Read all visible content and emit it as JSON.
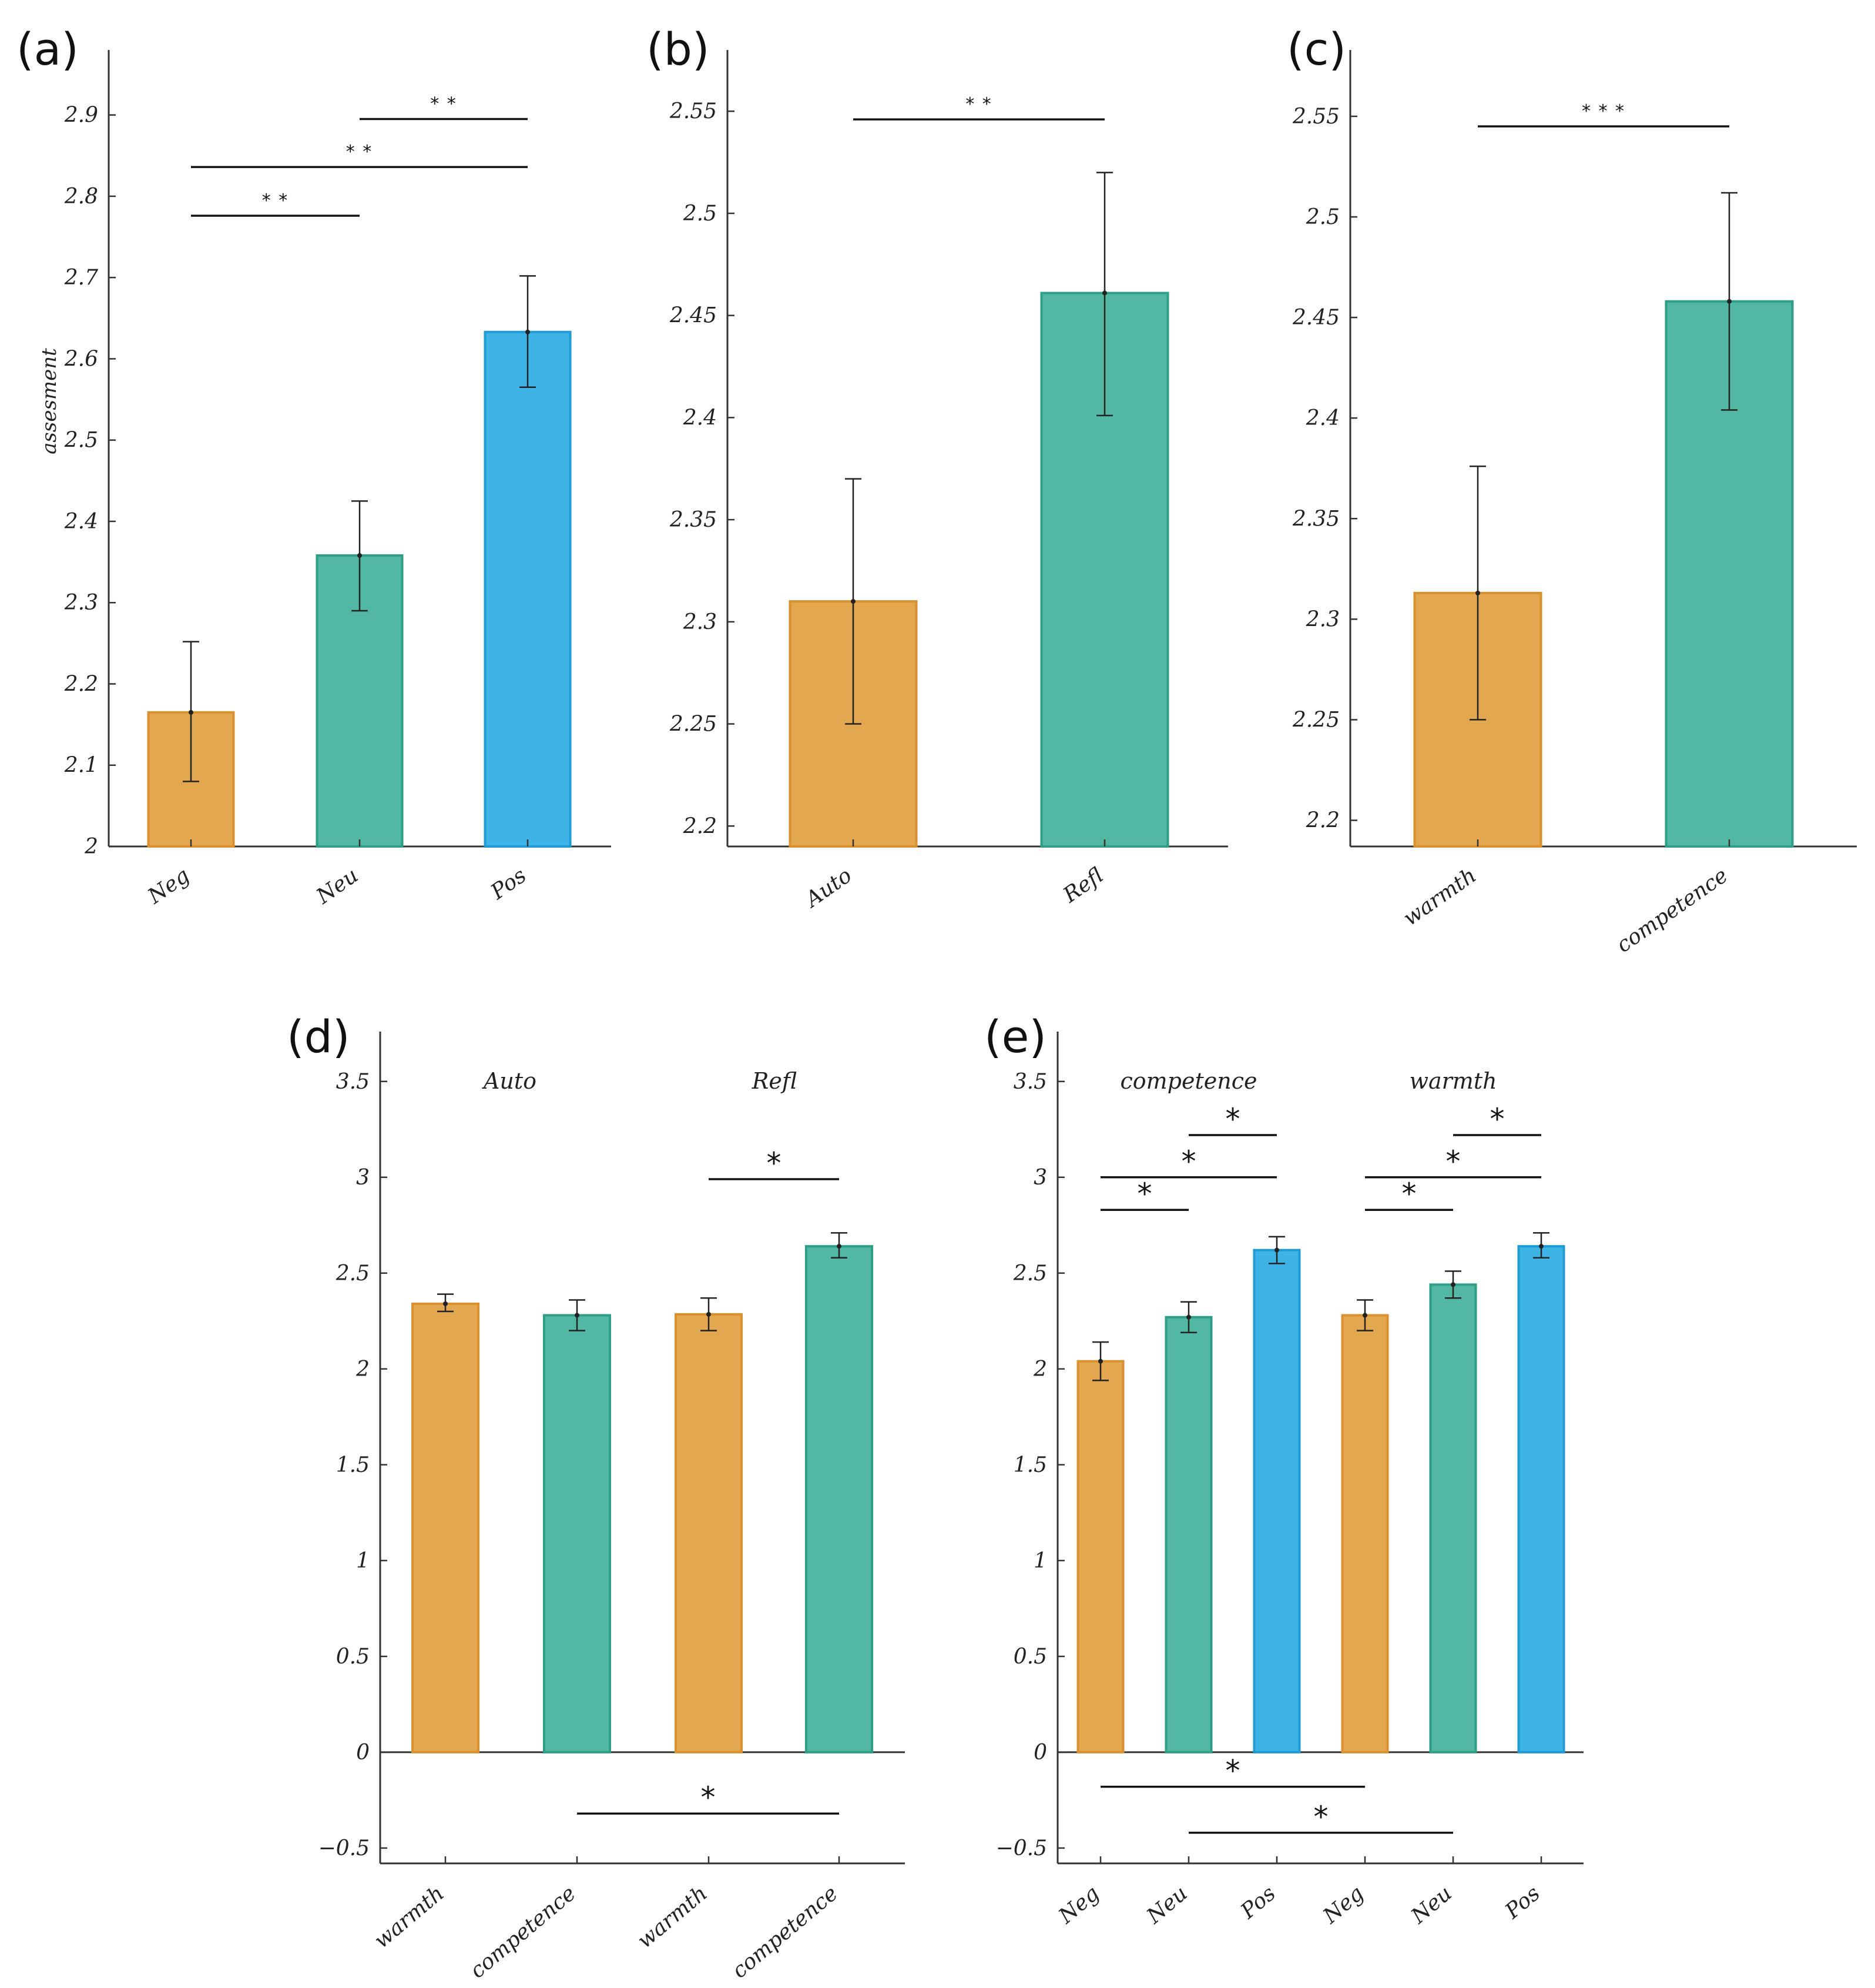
{
  "colors": {
    "orange": "#E3A84F",
    "orange_edge": "#D9902F",
    "green": "#52B7A3",
    "green_edge": "#2E9E86",
    "blue": "#3EB3E5",
    "blue_edge": "#1E9BD5"
  },
  "chart_data": [
    {
      "id": "a",
      "panel_label": "(a)",
      "type": "bar",
      "ylabel": "assesment",
      "ylim": [
        2,
        2.98
      ],
      "yticks": [
        "2",
        "2.1",
        "2.2",
        "2.3",
        "2.4",
        "2.5",
        "2.6",
        "2.7",
        "2.8",
        "2.9"
      ],
      "categories": [
        "Neg",
        "Neu",
        "Pos"
      ],
      "values": [
        2.165,
        2.358,
        2.633
      ],
      "err_low": [
        2.08,
        2.29,
        2.565
      ],
      "err_high": [
        2.252,
        2.425,
        2.702
      ],
      "colors": [
        "orange",
        "green",
        "blue"
      ],
      "significance": [
        {
          "from": 0,
          "to": 1,
          "y": 2.776,
          "label": "* *"
        },
        {
          "from": 0,
          "to": 2,
          "y": 2.836,
          "label": "* *"
        },
        {
          "from": 1,
          "to": 2,
          "y": 2.895,
          "label": "* *"
        }
      ]
    },
    {
      "id": "b",
      "panel_label": "(b)",
      "type": "bar",
      "ylim": [
        2.19,
        2.58
      ],
      "yticks": [
        "2.2",
        "2.25",
        "2.3",
        "2.35",
        "2.4",
        "2.45",
        "2.5",
        "2.55"
      ],
      "categories": [
        "Auto",
        "Refl"
      ],
      "values": [
        2.31,
        2.461
      ],
      "err_low": [
        2.25,
        2.401
      ],
      "err_high": [
        2.37,
        2.52
      ],
      "colors": [
        "orange",
        "green"
      ],
      "significance": [
        {
          "from": 0,
          "to": 1,
          "y": 2.546,
          "label": "* *"
        }
      ]
    },
    {
      "id": "c",
      "panel_label": "(c)",
      "type": "bar",
      "ylim": [
        2.187,
        2.583
      ],
      "yticks": [
        "2.2",
        "2.25",
        "2.3",
        "2.35",
        "2.4",
        "2.45",
        "2.5",
        "2.55"
      ],
      "categories": [
        "warmth",
        "competence"
      ],
      "values": [
        2.313,
        2.458
      ],
      "err_low": [
        2.25,
        2.404
      ],
      "err_high": [
        2.376,
        2.512
      ],
      "colors": [
        "orange",
        "green"
      ],
      "significance": [
        {
          "from": 0,
          "to": 1,
          "y": 2.545,
          "label": "* * *"
        }
      ]
    },
    {
      "id": "d",
      "panel_label": "(d)",
      "type": "bar",
      "ylim": [
        -0.58,
        3.76
      ],
      "yticks": [
        "−0.5",
        "0",
        "0.5",
        "1",
        "1.5",
        "2",
        "2.5",
        "3",
        "3.5"
      ],
      "categories": [
        "warmth",
        "competence",
        "warmth",
        "competence"
      ],
      "groups": [
        "Auto",
        "Refl"
      ],
      "values": [
        2.34,
        2.28,
        2.285,
        2.64
      ],
      "err_low": [
        2.3,
        2.2,
        2.2,
        2.58
      ],
      "err_high": [
        2.39,
        2.36,
        2.37,
        2.71
      ],
      "colors": [
        "orange",
        "green",
        "orange",
        "green"
      ],
      "significance": [
        {
          "from": 2,
          "to": 3,
          "y": 2.99,
          "label": "*"
        },
        {
          "from": 1,
          "to": 3,
          "y": -0.32,
          "label": "*"
        }
      ]
    },
    {
      "id": "e",
      "panel_label": "(e)",
      "type": "bar",
      "ylim": [
        -0.58,
        3.76
      ],
      "yticks": [
        "−0.5",
        "0",
        "0.5",
        "1",
        "1.5",
        "2",
        "2.5",
        "3",
        "3.5"
      ],
      "categories": [
        "Neg",
        "Neu",
        "Pos",
        "Neg",
        "Neu",
        "Pos"
      ],
      "groups": [
        "competence",
        "warmth"
      ],
      "values": [
        2.04,
        2.27,
        2.62,
        2.28,
        2.44,
        2.64
      ],
      "err_low": [
        1.94,
        2.19,
        2.55,
        2.2,
        2.37,
        2.58
      ],
      "err_high": [
        2.14,
        2.35,
        2.69,
        2.36,
        2.51,
        2.71
      ],
      "colors": [
        "orange",
        "green",
        "blue",
        "orange",
        "green",
        "blue"
      ],
      "significance": [
        {
          "from": 0,
          "to": 1,
          "y": 2.83,
          "label": "*"
        },
        {
          "from": 0,
          "to": 2,
          "y": 3.0,
          "label": "*"
        },
        {
          "from": 1,
          "to": 2,
          "y": 3.22,
          "label": "*"
        },
        {
          "from": 3,
          "to": 4,
          "y": 2.83,
          "label": "*"
        },
        {
          "from": 3,
          "to": 5,
          "y": 3.0,
          "label": "*"
        },
        {
          "from": 4,
          "to": 5,
          "y": 3.22,
          "label": "*"
        },
        {
          "from": 0,
          "to": 3,
          "y": -0.18,
          "label": "*"
        },
        {
          "from": 1,
          "to": 4,
          "y": -0.42,
          "label": "*"
        }
      ]
    }
  ]
}
